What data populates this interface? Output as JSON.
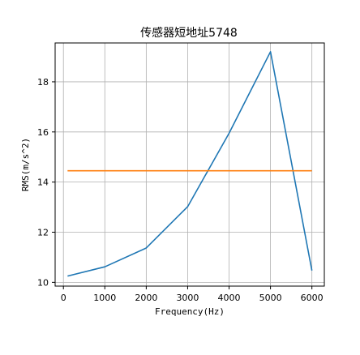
{
  "chart_data": {
    "type": "line",
    "title": "传感器短地址5748",
    "xlabel": "Frequency(Hz)",
    "ylabel": "RMS(m/s^2)",
    "xlim": [
      -200,
      6300
    ],
    "ylim": [
      9.85,
      19.55
    ],
    "xticks": [
      0,
      1000,
      2000,
      3000,
      4000,
      5000,
      6000
    ],
    "yticks": [
      10,
      12,
      14,
      16,
      18
    ],
    "grid": true,
    "series": [
      {
        "color": "#1f77b4",
        "x": [
          100,
          1000,
          2000,
          3000,
          4000,
          5000,
          6000
        ],
        "y": [
          10.25,
          10.62,
          11.37,
          13.02,
          15.95,
          19.2,
          10.47
        ]
      },
      {
        "color": "#ff7f0e",
        "x": [
          100,
          6000
        ],
        "y": [
          14.45,
          14.45
        ]
      }
    ]
  }
}
